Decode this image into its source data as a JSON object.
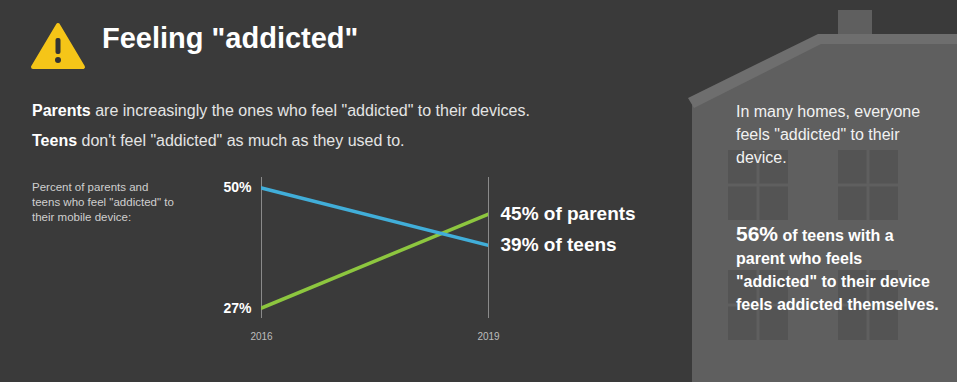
{
  "chart_data": {
    "type": "line",
    "title": "Feeling \"addicted\"",
    "subtitle": [
      "Parents are increasingly the ones who feel \"addicted\" to their devices.",
      "Teens don't feel \"addicted\" as much as they used to."
    ],
    "ylabel": "Percent of parents and teens who feel \"addicted\" to their mobile device:",
    "x": [
      2016,
      2019
    ],
    "xlim": [
      2016,
      2019
    ],
    "xticks": [
      2016,
      2019
    ],
    "ylim": [
      25,
      52
    ],
    "yticks": [],
    "tick_labels": "x",
    "grid": true,
    "data_labels": true,
    "series": [
      {
        "name": "Parents",
        "color": "#8dc63f",
        "values": [
          27,
          45
        ],
        "value_labels": [
          "27%",
          "45% of parents"
        ]
      },
      {
        "name": "Teens",
        "color": "#41aed9",
        "values": [
          50,
          39
        ],
        "value_labels": [
          "50%",
          "39% of teens"
        ]
      }
    ],
    "annotations": [
      {
        "text": "In many homes, everyone feels \"addicted\" to their device."
      },
      {
        "label": "56%",
        "text": "of teens with a parent who feels \"addicted\" to their device feels addicted themselves."
      }
    ]
  }
}
